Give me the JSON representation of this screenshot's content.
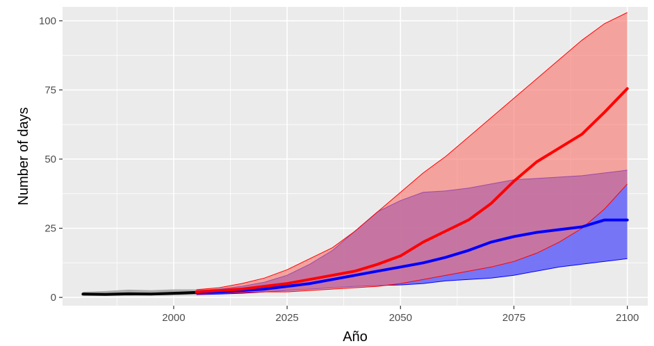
{
  "chart_data": {
    "type": "area",
    "title": "",
    "xlabel": "Año",
    "ylabel": "Number of days",
    "xlim": [
      1975.5,
      2104.5
    ],
    "ylim": [
      -3,
      105
    ],
    "x_ticks": [
      2000,
      2025,
      2050,
      2075,
      2100
    ],
    "y_ticks": [
      0,
      25,
      50,
      75,
      100
    ],
    "x_minor_ticks": [
      1987.5,
      2012.5,
      2037.5,
      2062.5,
      2087.5
    ],
    "y_minor_ticks": [
      12.5,
      37.5,
      62.5,
      87.5
    ],
    "grid": true,
    "legend": "none",
    "colors": {
      "panel": "#ebebeb",
      "grid": "#ffffff",
      "historical": "#000000",
      "historical_band": "#808080",
      "scenario_high": "#ff0000",
      "scenario_high_band": "#f8766d",
      "scenario_low": "#0000ff",
      "scenario_low_band": "#6f6ff7"
    },
    "series": [
      {
        "key": "historical",
        "x": [
          1980,
          1985,
          1990,
          1995,
          2000,
          2005
        ],
        "mean": [
          1.2,
          1.1,
          1.3,
          1.2,
          1.5,
          1.8
        ],
        "upper": [
          2.0,
          2.3,
          2.8,
          2.6,
          2.9,
          2.9
        ],
        "lower": [
          0.6,
          0.6,
          0.6,
          0.7,
          0.7,
          0.9
        ]
      },
      {
        "key": "scenario_low",
        "x": [
          2005,
          2010,
          2015,
          2020,
          2025,
          2030,
          2035,
          2040,
          2045,
          2050,
          2055,
          2060,
          2065,
          2070,
          2075,
          2080,
          2085,
          2090,
          2095,
          2100
        ],
        "mean": [
          1.8,
          2.0,
          2.5,
          3.0,
          4.0,
          5.0,
          6.5,
          8.0,
          9.5,
          11.0,
          12.5,
          14.5,
          17.0,
          20.0,
          22.0,
          23.5,
          24.5,
          25.5,
          28.0,
          28.0
        ],
        "upper": [
          2.5,
          3.0,
          4.0,
          5.5,
          8.0,
          12.0,
          17.0,
          24.0,
          31.0,
          35.0,
          38.0,
          38.5,
          39.5,
          41.0,
          42.5,
          43.0,
          43.5,
          44.0,
          45.0,
          46.0
        ],
        "lower": [
          1.0,
          1.2,
          1.5,
          2.0,
          2.5,
          3.0,
          3.5,
          4.0,
          4.3,
          4.5,
          5.0,
          6.0,
          6.5,
          7.0,
          8.0,
          9.5,
          11.0,
          12.0,
          13.0,
          14.0
        ]
      },
      {
        "key": "scenario_high",
        "x": [
          2005,
          2010,
          2015,
          2020,
          2025,
          2030,
          2035,
          2040,
          2045,
          2050,
          2055,
          2060,
          2065,
          2070,
          2075,
          2080,
          2085,
          2090,
          2095,
          2100
        ],
        "mean": [
          2.0,
          2.5,
          3.0,
          4.0,
          5.0,
          6.5,
          8.0,
          9.5,
          12.0,
          15.0,
          20.0,
          24.0,
          28.0,
          34.0,
          42.0,
          49.0,
          54.0,
          59.0,
          67.0,
          75.5
        ],
        "upper": [
          2.8,
          3.5,
          5.0,
          7.0,
          10.0,
          14.0,
          18.0,
          24.0,
          31.0,
          38.0,
          45.0,
          51.0,
          58.0,
          65.0,
          72.0,
          79.0,
          86.0,
          93.0,
          99.0,
          103.0
        ],
        "lower": [
          1.2,
          1.5,
          1.8,
          2.0,
          2.0,
          2.5,
          3.0,
          3.5,
          4.0,
          5.0,
          6.5,
          8.0,
          9.5,
          11.0,
          13.0,
          16.0,
          20.0,
          25.0,
          32.0,
          41.0
        ]
      }
    ]
  }
}
